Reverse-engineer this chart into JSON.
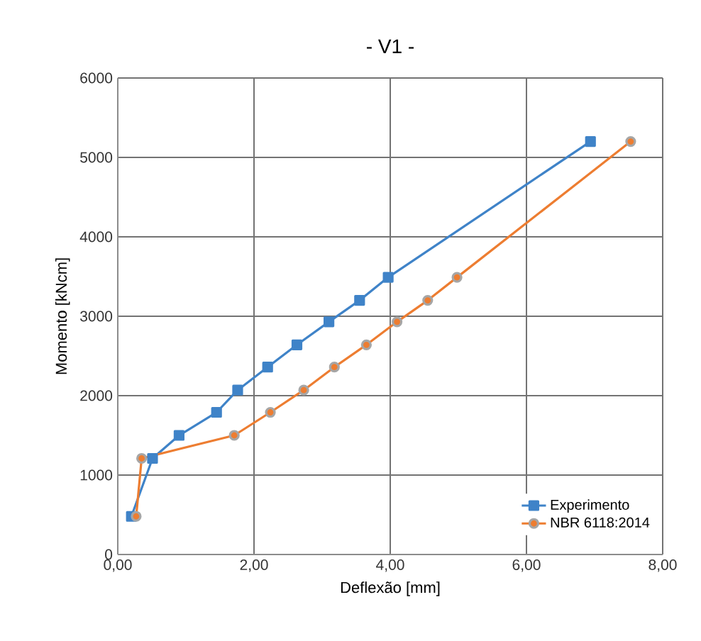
{
  "chart_data": {
    "type": "line",
    "title": "- V1 -",
    "xlabel": "Deflexão [mm]",
    "ylabel": "Momento [kNcm]",
    "series": [
      {
        "name": "Experimento",
        "color": "#3f83c8",
        "marker": "square",
        "x": [
          0.2,
          0.51,
          0.9,
          1.45,
          1.76,
          2.2,
          2.63,
          3.1,
          3.55,
          3.97,
          6.94
        ],
        "values": [
          480,
          1210,
          1500,
          1790,
          2070,
          2360,
          2640,
          2930,
          3200,
          3490,
          5200
        ]
      },
      {
        "name": "NBR 6118:2014",
        "color": "#ed7d31",
        "marker": "circle",
        "x": [
          0.27,
          0.35,
          1.71,
          2.24,
          2.73,
          3.18,
          3.65,
          4.1,
          4.55,
          4.98,
          7.53
        ],
        "values": [
          480,
          1210,
          1500,
          1790,
          2070,
          2360,
          2640,
          2930,
          3200,
          3490,
          5200
        ]
      }
    ],
    "xlim": [
      0,
      8
    ],
    "ylim": [
      0,
      6000
    ],
    "xticks": [
      {
        "value": 0,
        "label": "0,00"
      },
      {
        "value": 2,
        "label": "2,00"
      },
      {
        "value": 4,
        "label": "4,00"
      },
      {
        "value": 6,
        "label": "6,00"
      },
      {
        "value": 8,
        "label": "8,00"
      }
    ],
    "yticks": [
      0,
      1000,
      2000,
      3000,
      4000,
      5000,
      6000
    ],
    "grid": true,
    "legend": "bottom right",
    "line_style": "solid"
  }
}
